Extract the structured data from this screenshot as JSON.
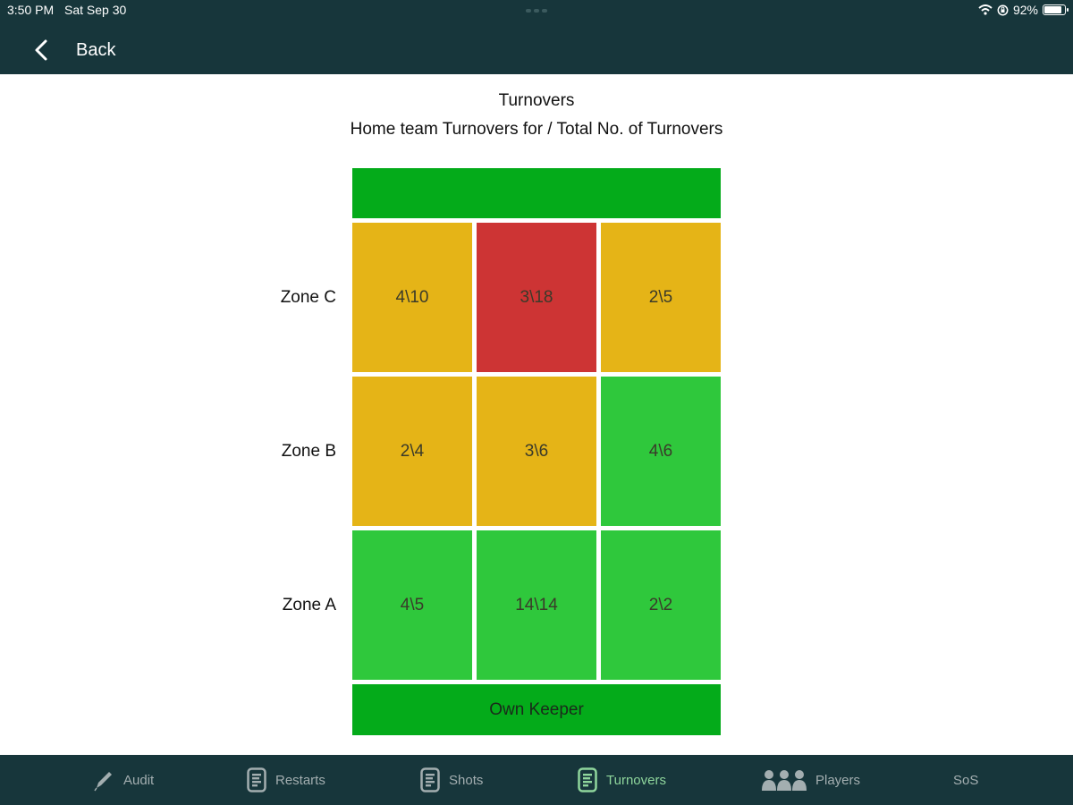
{
  "status_bar": {
    "time": "3:50 PM",
    "date": "Sat Sep 30",
    "battery": "92%",
    "battery_level": 0.92
  },
  "header": {
    "back_label": "Back"
  },
  "titles": {
    "main": "Turnovers",
    "sub": "Home team Turnovers for / Total No. of Turnovers"
  },
  "colors": {
    "header_bg": "#17363b",
    "top_bar": "#04ab1a",
    "orange": "#e5b417",
    "red": "#cd3434",
    "green": "#2fc83c",
    "keeper": "#04ab1a",
    "tab_active": "#8fd69c",
    "tab_inactive": "#a3aeb0"
  },
  "field": {
    "bottom_label": "Own Keeper",
    "zones": [
      {
        "label": "Zone C",
        "cells": [
          {
            "value": "4\\10",
            "color": "orange"
          },
          {
            "value": "3\\18",
            "color": "red"
          },
          {
            "value": "2\\5",
            "color": "orange"
          }
        ]
      },
      {
        "label": "Zone B",
        "cells": [
          {
            "value": "2\\4",
            "color": "orange"
          },
          {
            "value": "3\\6",
            "color": "orange"
          },
          {
            "value": "4\\6",
            "color": "green"
          }
        ]
      },
      {
        "label": "Zone A",
        "cells": [
          {
            "value": "4\\5",
            "color": "green"
          },
          {
            "value": "14\\14",
            "color": "green"
          },
          {
            "value": "2\\2",
            "color": "green"
          }
        ]
      }
    ]
  },
  "tabs": [
    {
      "label": "Audit",
      "icon": "pencil-icon",
      "active": false
    },
    {
      "label": "Restarts",
      "icon": "document-icon",
      "active": false
    },
    {
      "label": "Shots",
      "icon": "document-icon",
      "active": false
    },
    {
      "label": "Turnovers",
      "icon": "document-icon",
      "active": true
    },
    {
      "label": "Players",
      "icon": "people-icon",
      "active": false
    },
    {
      "label": "SoS",
      "icon": "",
      "active": false
    }
  ]
}
